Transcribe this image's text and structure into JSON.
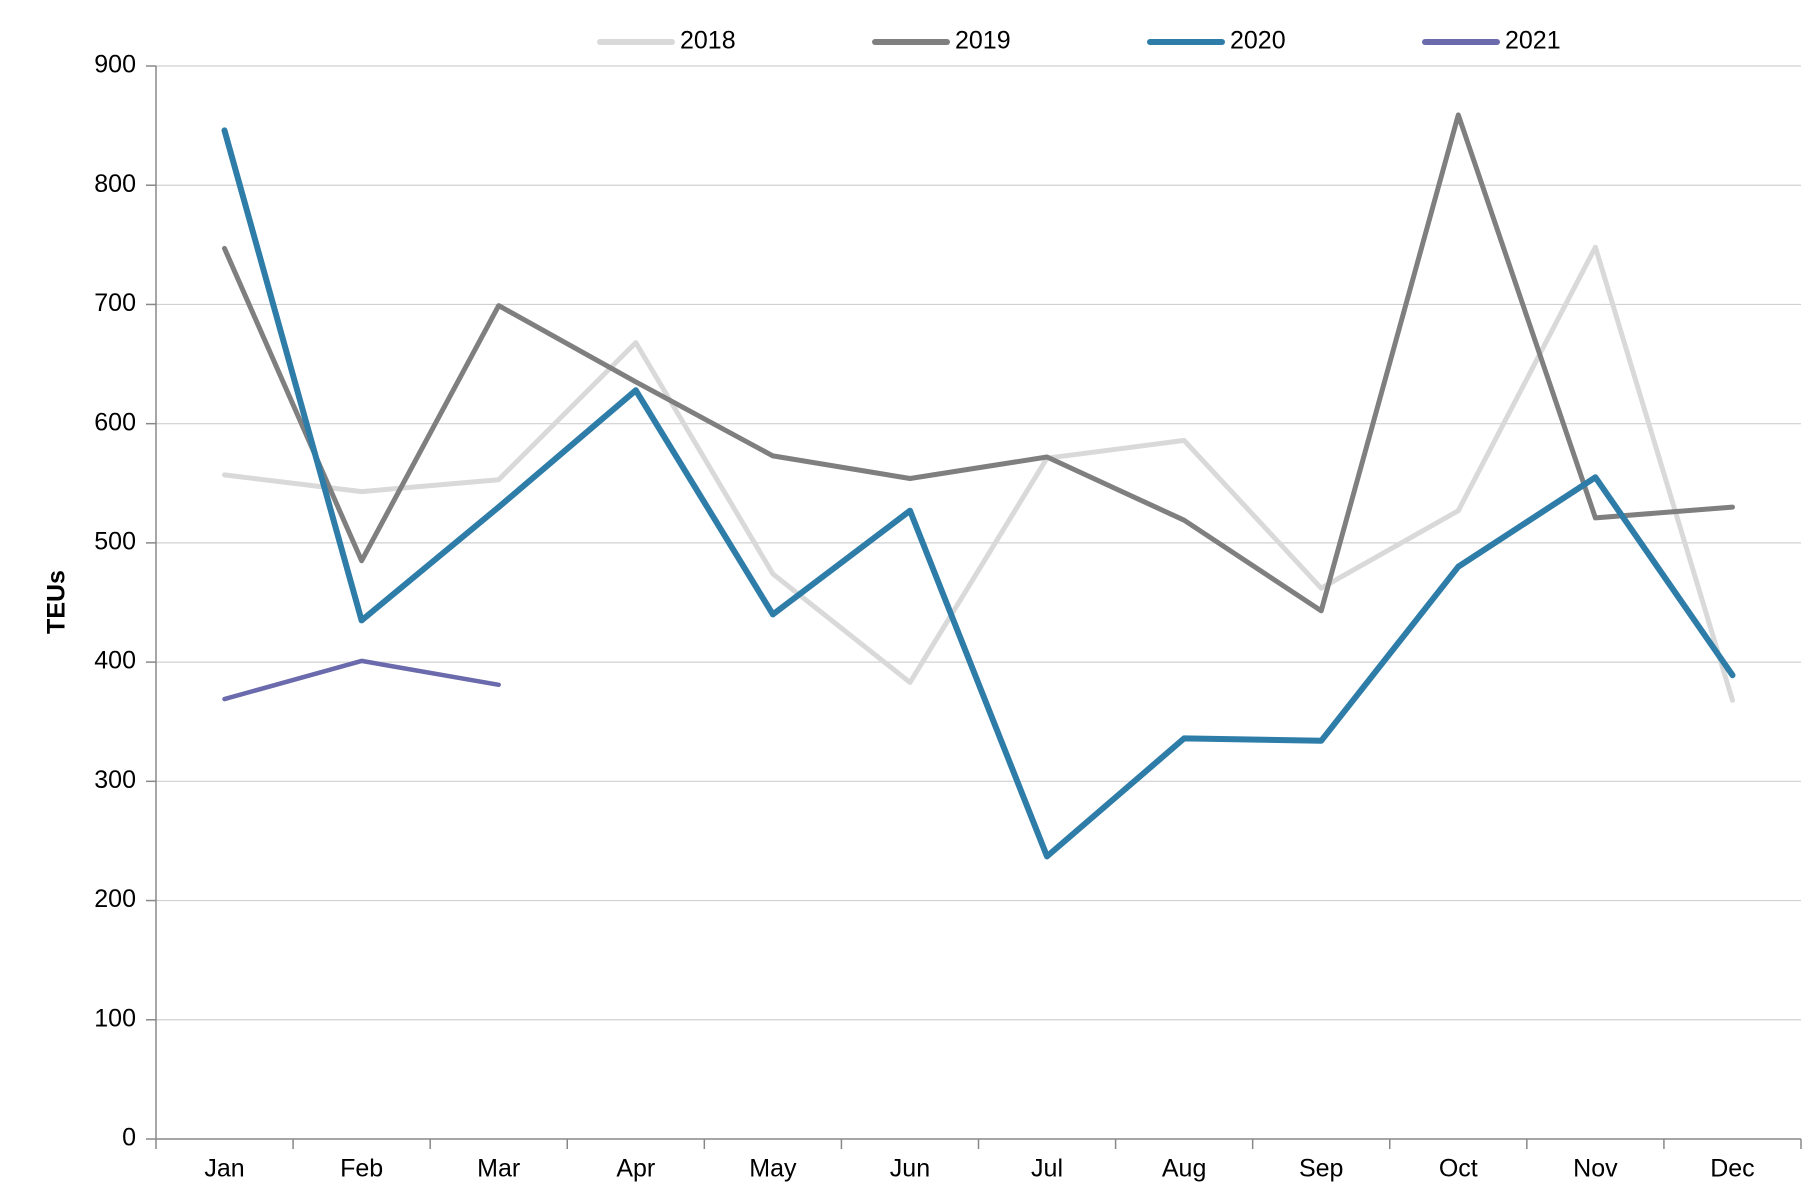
{
  "chart_data": {
    "type": "line",
    "y_label": "TEUs",
    "categories": [
      "Jan",
      "Feb",
      "Mar",
      "Apr",
      "May",
      "Jun",
      "Jul",
      "Aug",
      "Sep",
      "Oct",
      "Nov",
      "Dec"
    ],
    "series": [
      {
        "name": "2018",
        "color": "#d9d9d9",
        "values": [
          557,
          543,
          553,
          668,
          474,
          383,
          571,
          586,
          462,
          527,
          748,
          368
        ]
      },
      {
        "name": "2019",
        "color": "#7f7f7f",
        "values": [
          747,
          485,
          699,
          635,
          573,
          554,
          572,
          519,
          443,
          859,
          521,
          530
        ]
      },
      {
        "name": "2020",
        "color": "#2e7ca8",
        "values": [
          846,
          435,
          530,
          628,
          440,
          527,
          237,
          336,
          334,
          480,
          555,
          389
        ]
      },
      {
        "name": "2021",
        "color": "#6a6aad",
        "values": [
          369,
          401,
          381,
          null,
          null,
          null,
          null,
          null,
          null,
          null,
          null,
          null
        ]
      }
    ],
    "ylim": [
      0,
      900
    ],
    "yticks": [
      0,
      100,
      200,
      300,
      400,
      500,
      600,
      700,
      800,
      900
    ],
    "grid": true,
    "legend": "top"
  }
}
